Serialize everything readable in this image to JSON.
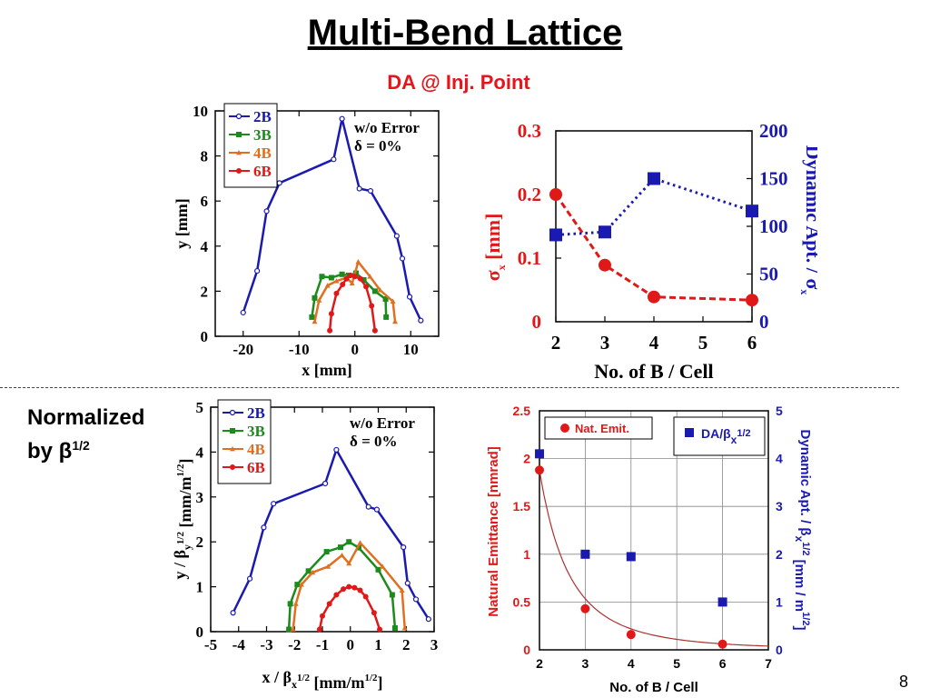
{
  "title": "Multi-Bend Lattice",
  "subtitle": "DA @ Inj. Point",
  "normalized_label": [
    "Normalized",
    "by β",
    "1/2"
  ],
  "page_number": "8",
  "chart_data": [
    {
      "id": "da_mm",
      "type": "line",
      "xlabel": "x [mm]",
      "ylabel": "y [mm]",
      "xlim": [
        -25,
        15
      ],
      "ylim": [
        0,
        10
      ],
      "xticks": [
        -20,
        -10,
        0,
        10
      ],
      "yticks": [
        0,
        2,
        4,
        6,
        8,
        10
      ],
      "annotation": [
        "w/o Error",
        "δ = 0%"
      ],
      "legend_position": "top-left",
      "series": [
        {
          "name": "2B",
          "color": "#1a1ab0",
          "marker": "open-circle",
          "x": [
            -20,
            -17.5,
            -15.8,
            -13.5,
            -3.8,
            -2.3,
            0.8,
            2.8,
            7.5,
            8.5,
            9.8,
            11.8
          ],
          "y": [
            1.05,
            2.9,
            5.55,
            6.8,
            7.85,
            9.65,
            6.55,
            6.45,
            4.45,
            3.45,
            1.75,
            0.7
          ]
        },
        {
          "name": "3B",
          "color": "#1c8a1c",
          "marker": "square",
          "x": [
            -7.7,
            -7.2,
            -5.9,
            -4.2,
            -2.3,
            -1.1,
            0.2,
            1.6,
            3.6,
            5.5,
            5.6
          ],
          "y": [
            0.85,
            1.7,
            2.65,
            2.6,
            2.75,
            2.7,
            2.8,
            2.5,
            2.0,
            1.65,
            0.85
          ]
        },
        {
          "name": "4B",
          "color": "#e07020",
          "marker": "triangle",
          "x": [
            -7.2,
            -6.4,
            -4.9,
            -3.3,
            -1.5,
            -0.5,
            0.6,
            2.7,
            4.5,
            6.8,
            7.2
          ],
          "y": [
            0.65,
            1.6,
            2.25,
            2.45,
            2.6,
            2.35,
            3.3,
            2.65,
            2.05,
            1.55,
            0.65
          ]
        },
        {
          "name": "6B",
          "color": "#e01818",
          "marker": "circle",
          "x": [
            -4.5,
            -4.2,
            -3.3,
            -2.2,
            -1.5,
            -0.8,
            0.0,
            1.0,
            2.0,
            3.0,
            3.6
          ],
          "y": [
            0.25,
            1.0,
            1.9,
            2.3,
            2.55,
            2.7,
            2.65,
            2.55,
            2.2,
            1.35,
            0.25
          ]
        }
      ]
    },
    {
      "id": "da_vs_nb",
      "type": "line",
      "xlabel": "No. of B / Cell",
      "ylabel_left": "σx [mm]",
      "ylabel_right": "Dynamic Apt. / σx",
      "xlim": [
        2,
        6
      ],
      "ylim_left": [
        0,
        0.3
      ],
      "ylim_right": [
        0,
        200
      ],
      "xticks": [
        2,
        3,
        4,
        5,
        6
      ],
      "yticks_left": [
        0,
        0.1,
        0.2,
        0.3
      ],
      "yticks_left_labels": [
        "0",
        "0.1",
        "0.2",
        "0.3"
      ],
      "yticks_right": [
        0,
        50,
        100,
        150,
        200
      ],
      "series": [
        {
          "name": "σx",
          "axis": "left",
          "color": "#e01818",
          "marker": "circle",
          "style": "dashed",
          "x": [
            2,
            3,
            4,
            6
          ],
          "y": [
            0.2,
            0.089,
            0.039,
            0.034
          ]
        },
        {
          "name": "Dynamic Apt. / σx",
          "axis": "right",
          "color": "#1a1ab0",
          "marker": "square",
          "style": "dotted",
          "x": [
            2,
            3,
            4,
            6
          ],
          "y": [
            91,
            94,
            150,
            116
          ]
        }
      ]
    },
    {
      "id": "da_norm",
      "type": "line",
      "xlabel": "x / βx1/2 [mm/m1/2]",
      "ylabel": "y / βy1/2 [mm/m1/2]",
      "xlim": [
        -5,
        3
      ],
      "ylim": [
        0,
        5
      ],
      "xticks": [
        -5,
        -4,
        -3,
        -2,
        -1,
        0,
        1,
        2,
        3
      ],
      "yticks": [
        0,
        1,
        2,
        3,
        4,
        5
      ],
      "annotation": [
        "w/o Error",
        "δ = 0%"
      ],
      "legend_position": "top-left",
      "series": [
        {
          "name": "2B",
          "color": "#1a1ab0",
          "marker": "open-circle",
          "x": [
            -4.2,
            -3.6,
            -3.1,
            -2.75,
            -0.9,
            -0.5,
            0.65,
            0.95,
            1.9,
            2.05,
            2.35,
            2.8
          ],
          "y": [
            0.42,
            1.18,
            2.32,
            2.85,
            3.3,
            4.05,
            2.78,
            2.72,
            1.88,
            1.08,
            0.72,
            0.28
          ]
        },
        {
          "name": "3B",
          "color": "#1c8a1c",
          "marker": "square",
          "x": [
            -2.2,
            -2.15,
            -1.9,
            -1.5,
            -0.85,
            -0.35,
            -0.05,
            0.3,
            1.0,
            1.5,
            1.6
          ],
          "y": [
            0.05,
            0.62,
            1.05,
            1.35,
            1.78,
            1.88,
            2.0,
            1.87,
            1.38,
            0.82,
            0.08
          ]
        },
        {
          "name": "4B",
          "color": "#e07020",
          "marker": "triangle",
          "x": [
            -2.05,
            -1.95,
            -1.75,
            -1.35,
            -0.8,
            -0.3,
            -0.05,
            0.35,
            1.15,
            1.85,
            1.95
          ],
          "y": [
            0.05,
            0.62,
            1.05,
            1.32,
            1.45,
            1.7,
            1.52,
            1.98,
            1.45,
            0.92,
            0.08
          ]
        },
        {
          "name": "6B",
          "color": "#e01818",
          "marker": "circle",
          "x": [
            -1.1,
            -1.0,
            -0.75,
            -0.5,
            -0.25,
            -0.05,
            0.15,
            0.35,
            0.55,
            0.85,
            1.05
          ],
          "y": [
            0.05,
            0.35,
            0.62,
            0.82,
            0.95,
            1.0,
            0.98,
            0.92,
            0.78,
            0.42,
            0.05
          ]
        }
      ]
    },
    {
      "id": "emit_vs_nb",
      "type": "scatter",
      "xlabel": "No. of B / Cell",
      "ylabel_left": "Natural Emittance [nmrad]",
      "ylabel_right": "Dynamic Apt. / βx1/2 [mm / m1/2]",
      "xlim": [
        2,
        7
      ],
      "ylim_left": [
        0,
        2.5
      ],
      "ylim_right": [
        0,
        5
      ],
      "xticks": [
        2,
        3,
        4,
        5,
        6,
        7
      ],
      "yticks_left": [
        0,
        0.5,
        1,
        1.5,
        2,
        2.5
      ],
      "yticks_left_labels": [
        "0",
        "0.5",
        "1",
        "1.5",
        "2",
        "2.5"
      ],
      "yticks_right": [
        0,
        1,
        2,
        3,
        4,
        5
      ],
      "grid": true,
      "legend_left": "Nat. Emit.",
      "legend_right": "DA/βx1/2",
      "series": [
        {
          "name": "Nat. Emit.",
          "axis": "left",
          "color": "#e01818",
          "marker": "circle",
          "x": [
            2,
            3,
            4,
            6
          ],
          "y": [
            1.88,
            0.43,
            0.16,
            0.06
          ]
        },
        {
          "name": "DA/βx1/2",
          "axis": "right",
          "color": "#1a1ab0",
          "marker": "square",
          "x": [
            2,
            3,
            4,
            6
          ],
          "y": [
            4.1,
            2.0,
            1.95,
            1.0
          ]
        }
      ]
    }
  ]
}
